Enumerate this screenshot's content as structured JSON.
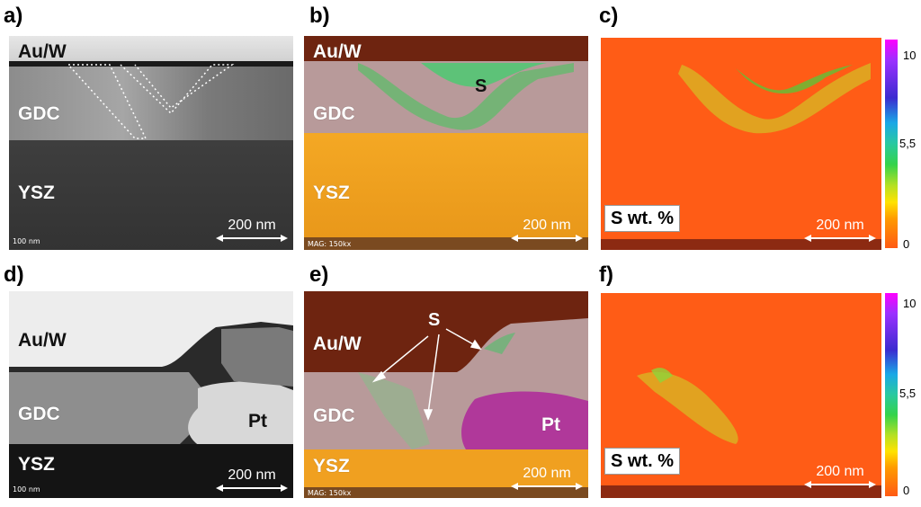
{
  "panel_letters": [
    "a)",
    "b)",
    "c)",
    "d)",
    "e)",
    "f)"
  ],
  "layers": {
    "au_w": "Au/W",
    "gdc": "GDC",
    "ysz": "YSZ",
    "pt": "Pt"
  },
  "sulfur_label": "S",
  "scale_text": "200 nm",
  "small_scale": "100 nm",
  "mag_text": "MAG: 150kx",
  "legend_label": "S wt. %",
  "colorbar_ticks": [
    "10",
    "5,5",
    "0"
  ],
  "colors": {
    "tem_dark": "#3a3a3a",
    "au_w_map": "#6e2410",
    "gdc_map": "#b49898",
    "ysz_map": "#f0a020",
    "pt_map": "#b0389a",
    "s_map": "#3ec95a",
    "map_bg": "#ff5a14",
    "map_s": "#7ed321"
  }
}
